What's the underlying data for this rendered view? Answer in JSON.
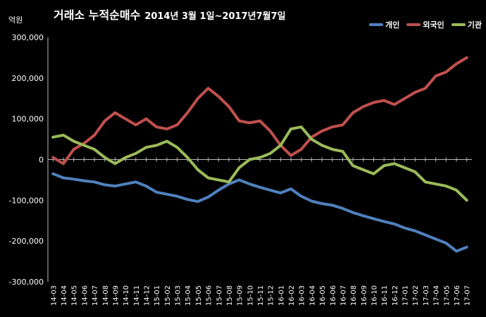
{
  "title": {
    "main": "거래소 누적순매수",
    "range": "2014년 3월 1일~2017년7월7일"
  },
  "chart_data": {
    "type": "line",
    "ylabel": "억원",
    "ylim": [
      -300000,
      300000
    ],
    "yticks": [
      300000,
      200000,
      100000,
      0,
      -100000,
      -200000,
      -300000
    ],
    "ytick_labels": [
      "300,000",
      "200,000",
      "100,000",
      "0",
      "-100,000",
      "-200,000",
      "-300,000"
    ],
    "categories": [
      "14-03",
      "14-04",
      "14-05",
      "14-06",
      "14-07",
      "14-08",
      "14-09",
      "14-10",
      "14-11",
      "14-12",
      "15-01",
      "15-02",
      "15-03",
      "15-04",
      "15-05",
      "15-06",
      "15-07",
      "15-08",
      "15-09",
      "15-10",
      "15-11",
      "15-12",
      "16-01",
      "16-02",
      "16-03",
      "16-04",
      "16-05",
      "16-06",
      "16-07",
      "16-08",
      "16-09",
      "16-10",
      "16-11",
      "16-12",
      "17-01",
      "17-02",
      "17-03",
      "17-04",
      "17-05",
      "17-06",
      "17-07"
    ],
    "grid": false,
    "legend_position": "top-right",
    "series": [
      {
        "name": "개인",
        "color": "#4f81bd",
        "values": [
          -35000,
          -45000,
          -48000,
          -52000,
          -55000,
          -62000,
          -65000,
          -60000,
          -55000,
          -65000,
          -80000,
          -85000,
          -90000,
          -98000,
          -103000,
          -92000,
          -75000,
          -60000,
          -50000,
          -60000,
          -68000,
          -75000,
          -82000,
          -72000,
          -90000,
          -102000,
          -108000,
          -112000,
          -120000,
          -130000,
          -138000,
          -145000,
          -152000,
          -158000,
          -168000,
          -175000,
          -185000,
          -195000,
          -205000,
          -225000,
          -215000
        ]
      },
      {
        "name": "외국인",
        "color": "#c0504d",
        "values": [
          5000,
          -10000,
          25000,
          40000,
          60000,
          95000,
          115000,
          100000,
          85000,
          100000,
          80000,
          75000,
          85000,
          115000,
          150000,
          175000,
          155000,
          130000,
          95000,
          90000,
          95000,
          70000,
          35000,
          10000,
          25000,
          55000,
          70000,
          80000,
          85000,
          115000,
          130000,
          140000,
          145000,
          135000,
          150000,
          165000,
          175000,
          205000,
          215000,
          235000,
          250000
        ]
      },
      {
        "name": "기관",
        "color": "#9bbb59",
        "values": [
          55000,
          60000,
          45000,
          35000,
          25000,
          5000,
          -10000,
          5000,
          15000,
          30000,
          35000,
          45000,
          30000,
          5000,
          -25000,
          -45000,
          -50000,
          -55000,
          -20000,
          0,
          5000,
          15000,
          35000,
          75000,
          80000,
          50000,
          35000,
          25000,
          20000,
          -15000,
          -25000,
          -35000,
          -15000,
          -10000,
          -20000,
          -30000,
          -55000,
          -60000,
          -65000,
          -75000,
          -100000
        ]
      }
    ]
  }
}
